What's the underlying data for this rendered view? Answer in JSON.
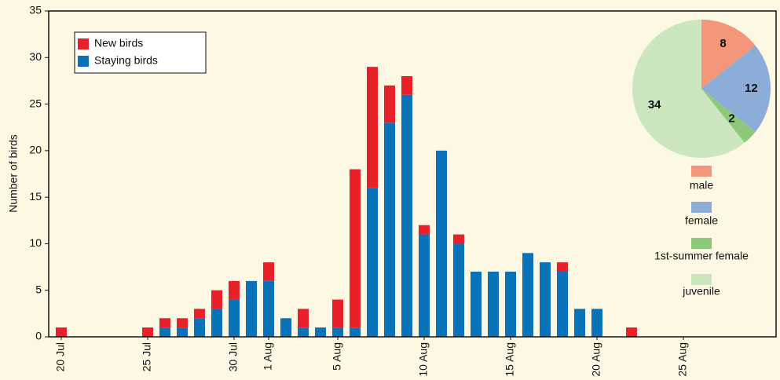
{
  "chart_data": [
    {
      "type": "bar",
      "stacked": true,
      "y_label": "Number of birds",
      "categories": [
        "20 Jul",
        null,
        null,
        null,
        null,
        "25 Jul",
        null,
        null,
        null,
        null,
        "30 Jul",
        null,
        "1 Aug",
        null,
        null,
        null,
        "5 Aug",
        null,
        null,
        null,
        null,
        "10 Aug",
        null,
        null,
        null,
        null,
        "15 Aug",
        null,
        null,
        null,
        null,
        "20 Aug",
        null,
        null,
        null,
        null,
        "25 Aug",
        null,
        null,
        null,
        null,
        null
      ],
      "series": [
        {
          "name": "Staying birds",
          "color": "#0a72b8",
          "values": [
            0,
            0,
            0,
            0,
            0,
            0,
            1,
            1,
            2,
            3,
            4,
            6,
            6,
            2,
            1,
            1,
            1,
            1,
            16,
            23,
            26,
            11,
            20,
            10,
            7,
            7,
            7,
            9,
            8,
            7,
            3,
            3,
            0,
            0,
            0,
            0,
            0,
            0,
            0,
            0,
            0,
            0
          ]
        },
        {
          "name": "New birds",
          "color": "#e8202a",
          "values": [
            1,
            0,
            0,
            0,
            0,
            1,
            1,
            1,
            1,
            2,
            2,
            0,
            2,
            0,
            2,
            0,
            3,
            17,
            13,
            4,
            2,
            1,
            0,
            1,
            0,
            0,
            0,
            0,
            0,
            1,
            0,
            0,
            0,
            1,
            0,
            0,
            0,
            0,
            0,
            0,
            0,
            0
          ]
        }
      ],
      "ylim": [
        0,
        35
      ],
      "yticks": [
        0,
        5,
        10,
        15,
        20,
        25,
        30,
        35
      ]
    },
    {
      "type": "pie",
      "categories": [
        "male",
        "female",
        "1st-summer female",
        "juvenile"
      ],
      "values": [
        8,
        12,
        2,
        34
      ],
      "colors": [
        "#f4967a",
        "#8dadd9",
        "#8dc97a",
        "#cce6c0"
      ]
    }
  ]
}
